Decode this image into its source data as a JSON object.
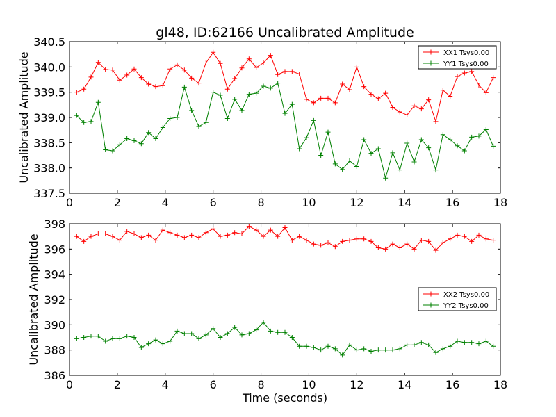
{
  "figure": {
    "title": "gl48, ID:62166 Uncalibrated Amplitude",
    "xlabel": "Time (seconds)"
  },
  "colors": {
    "red": "#ff0000",
    "green": "#008000"
  },
  "chart_data": [
    {
      "type": "line",
      "ylabel": "Uncalibrated Amplitude",
      "xlim": [
        0,
        18
      ],
      "ylim": [
        337.5,
        340.5
      ],
      "xticks": [
        0,
        2,
        4,
        6,
        8,
        10,
        12,
        14,
        16,
        18
      ],
      "yticks": [
        337.5,
        338.0,
        338.5,
        339.0,
        339.5,
        340.0,
        340.5
      ],
      "xtick_labels": [
        "0",
        "2",
        "4",
        "6",
        "8",
        "10",
        "12",
        "14",
        "16",
        "18"
      ],
      "ytick_labels": [
        "337.5",
        "338.0",
        "338.5",
        "339.0",
        "339.5",
        "340.0",
        "340.5"
      ],
      "legend_position": "top-right",
      "x": [
        0.3,
        0.6,
        0.9,
        1.2,
        1.5,
        1.8,
        2.1,
        2.4,
        2.7,
        3.0,
        3.3,
        3.6,
        3.9,
        4.2,
        4.5,
        4.8,
        5.1,
        5.4,
        5.7,
        6.0,
        6.3,
        6.6,
        6.9,
        7.2,
        7.5,
        7.8,
        8.1,
        8.4,
        8.7,
        9.0,
        9.3,
        9.6,
        9.9,
        10.2,
        10.5,
        10.8,
        11.1,
        11.4,
        11.7,
        12.0,
        12.3,
        12.6,
        12.9,
        13.2,
        13.5,
        13.8,
        14.1,
        14.4,
        14.7,
        15.0,
        15.3,
        15.6,
        15.9,
        16.2,
        16.5,
        16.8,
        17.1,
        17.4,
        17.7
      ],
      "series": [
        {
          "name": "XX1 Tsys0.00",
          "color": "#ff0000",
          "values": [
            339.5,
            339.56,
            339.8,
            340.09,
            339.95,
            339.94,
            339.74,
            339.84,
            339.96,
            339.79,
            339.66,
            339.61,
            339.63,
            339.96,
            340.04,
            339.94,
            339.78,
            339.68,
            340.08,
            340.29,
            340.07,
            339.56,
            339.77,
            339.98,
            340.16,
            339.99,
            340.08,
            340.23,
            339.85,
            339.91,
            339.91,
            339.86,
            339.36,
            339.29,
            339.38,
            339.38,
            339.29,
            339.66,
            339.55,
            340.0,
            339.61,
            339.46,
            339.37,
            339.48,
            339.2,
            339.11,
            339.05,
            339.23,
            339.17,
            339.35,
            338.92,
            339.54,
            339.42,
            339.81,
            339.88,
            339.91,
            339.64,
            339.49,
            339.79
          ]
        },
        {
          "name": "YY1 Tsys0.00",
          "color": "#008000",
          "values": [
            339.04,
            338.9,
            338.92,
            339.3,
            338.36,
            338.34,
            338.46,
            338.58,
            338.54,
            338.48,
            338.7,
            338.58,
            338.8,
            338.98,
            339.0,
            339.6,
            339.14,
            338.82,
            338.9,
            339.5,
            339.44,
            338.98,
            339.36,
            339.14,
            339.46,
            339.48,
            339.62,
            339.58,
            339.68,
            339.08,
            339.26,
            338.38,
            338.6,
            338.94,
            338.25,
            338.71,
            338.08,
            337.97,
            338.14,
            338.03,
            338.56,
            338.29,
            338.38,
            337.8,
            338.3,
            337.96,
            338.49,
            338.12,
            338.56,
            338.4,
            337.96,
            338.66,
            338.56,
            338.44,
            338.34,
            338.61,
            338.63,
            338.76,
            338.43
          ]
        }
      ]
    },
    {
      "type": "line",
      "ylabel": "Uncalibrated Amplitude",
      "xlim": [
        0,
        18
      ],
      "ylim": [
        386,
        398
      ],
      "xticks": [
        0,
        2,
        4,
        6,
        8,
        10,
        12,
        14,
        16,
        18
      ],
      "yticks": [
        386,
        388,
        390,
        392,
        394,
        396,
        398
      ],
      "xtick_labels": [
        "0",
        "2",
        "4",
        "6",
        "8",
        "10",
        "12",
        "14",
        "16",
        "18"
      ],
      "ytick_labels": [
        "386",
        "388",
        "390",
        "392",
        "394",
        "396",
        "398"
      ],
      "legend_position": "center-right",
      "x": [
        0.3,
        0.6,
        0.9,
        1.2,
        1.5,
        1.8,
        2.1,
        2.4,
        2.7,
        3.0,
        3.3,
        3.6,
        3.9,
        4.2,
        4.5,
        4.8,
        5.1,
        5.4,
        5.7,
        6.0,
        6.3,
        6.6,
        6.9,
        7.2,
        7.5,
        7.8,
        8.1,
        8.4,
        8.7,
        9.0,
        9.3,
        9.6,
        9.9,
        10.2,
        10.5,
        10.8,
        11.1,
        11.4,
        11.7,
        12.0,
        12.3,
        12.6,
        12.9,
        13.2,
        13.5,
        13.8,
        14.1,
        14.4,
        14.7,
        15.0,
        15.3,
        15.6,
        15.9,
        16.2,
        16.5,
        16.8,
        17.1,
        17.4,
        17.7
      ],
      "series": [
        {
          "name": "XX2 Tsys0.00",
          "color": "#ff0000",
          "values": [
            397.0,
            396.6,
            397.0,
            397.2,
            397.2,
            397.0,
            396.7,
            397.4,
            397.2,
            396.9,
            397.1,
            396.7,
            397.5,
            397.3,
            397.1,
            396.9,
            397.1,
            396.9,
            397.3,
            397.6,
            397.0,
            397.1,
            397.3,
            397.2,
            397.8,
            397.5,
            397.0,
            397.5,
            397.0,
            397.7,
            396.7,
            397.0,
            396.7,
            396.4,
            396.3,
            396.5,
            396.2,
            396.6,
            396.7,
            396.8,
            396.8,
            396.6,
            396.1,
            396.0,
            396.4,
            396.1,
            396.4,
            396.0,
            396.7,
            396.6,
            395.9,
            396.5,
            396.8,
            397.1,
            397.0,
            396.6,
            397.1,
            396.8,
            396.7
          ]
        },
        {
          "name": "YY2 Tsys0.00",
          "color": "#008000",
          "values": [
            388.9,
            389.0,
            389.1,
            389.1,
            388.7,
            388.9,
            388.9,
            389.1,
            389.0,
            388.2,
            388.5,
            388.8,
            388.5,
            388.7,
            389.5,
            389.3,
            389.3,
            388.9,
            389.2,
            389.7,
            389.0,
            389.3,
            389.8,
            389.2,
            389.3,
            389.6,
            390.2,
            389.5,
            389.4,
            389.4,
            389.0,
            388.3,
            388.3,
            388.2,
            388.0,
            388.3,
            388.1,
            387.6,
            388.4,
            388.0,
            388.1,
            387.9,
            388.0,
            388.0,
            388.0,
            388.1,
            388.4,
            388.4,
            388.6,
            388.4,
            387.8,
            388.1,
            388.3,
            388.7,
            388.6,
            388.6,
            388.5,
            388.7,
            388.3
          ]
        }
      ]
    }
  ]
}
